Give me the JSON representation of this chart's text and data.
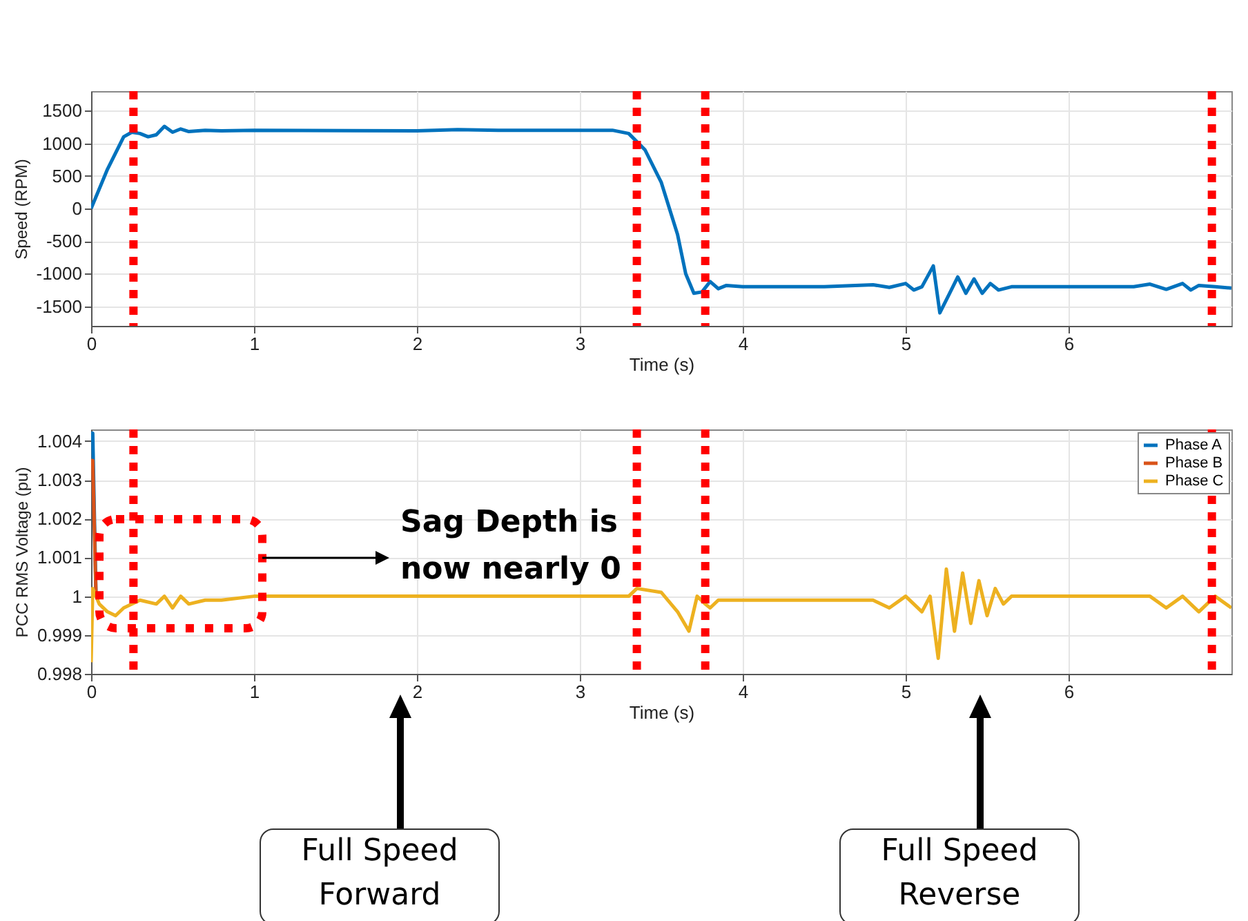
{
  "chart_data": [
    {
      "type": "line",
      "xlabel": "Time (s)",
      "ylabel": "Speed (RPM)",
      "xlim": [
        0,
        7
      ],
      "ylim": [
        -1800,
        1800
      ],
      "xticks": [
        0,
        1,
        2,
        3,
        4,
        5,
        6
      ],
      "yticks": [
        -1500,
        -1000,
        -500,
        0,
        500,
        1000,
        1500
      ],
      "grid": true,
      "legend": false,
      "line_style": "solid",
      "series": [
        {
          "color": "#0072bd",
          "x": [
            0,
            0.1,
            0.2,
            0.25,
            0.3,
            0.35,
            0.4,
            0.45,
            0.5,
            0.55,
            0.6,
            0.7,
            0.8,
            1.0,
            2.0,
            2.25,
            2.5,
            3.2,
            3.3,
            3.4,
            3.5,
            3.6,
            3.65,
            3.7,
            3.75,
            3.8,
            3.85,
            3.9,
            4.0,
            4.5,
            4.8,
            4.9,
            5.0,
            5.05,
            5.1,
            5.17,
            5.21,
            5.27,
            5.32,
            5.37,
            5.42,
            5.47,
            5.52,
            5.57,
            5.65,
            6.0,
            6.4,
            6.5,
            6.6,
            6.7,
            6.75,
            6.8,
            6.9,
            7.0
          ],
          "values": [
            0,
            600,
            1100,
            1170,
            1150,
            1100,
            1130,
            1260,
            1170,
            1220,
            1180,
            1200,
            1190,
            1200,
            1190,
            1210,
            1200,
            1200,
            1150,
            900,
            400,
            -400,
            -1000,
            -1300,
            -1280,
            -1120,
            -1230,
            -1180,
            -1200,
            -1200,
            -1170,
            -1210,
            -1150,
            -1250,
            -1200,
            -880,
            -1600,
            -1300,
            -1050,
            -1300,
            -1080,
            -1300,
            -1150,
            -1250,
            -1200,
            -1200,
            -1200,
            -1160,
            -1240,
            -1150,
            -1250,
            -1180,
            -1200,
            -1220
          ]
        }
      ],
      "ref_lines": [
        {
          "axis": "x",
          "value": 0.26,
          "color": "#ff0000",
          "line_style": "dotted"
        },
        {
          "axis": "x",
          "value": 3.35,
          "color": "#ff0000",
          "line_style": "dotted"
        },
        {
          "axis": "x",
          "value": 3.77,
          "color": "#ff0000",
          "line_style": "dotted"
        },
        {
          "axis": "x",
          "value": 6.88,
          "color": "#ff0000",
          "line_style": "dotted"
        }
      ]
    },
    {
      "type": "line",
      "xlabel": "Time (s)",
      "ylabel": "PCC RMS Voltage (pu)",
      "xlim": [
        0,
        7
      ],
      "ylim": [
        0.998,
        1.0043
      ],
      "xticks": [
        0,
        1,
        2,
        3,
        4,
        5,
        6
      ],
      "yticks": [
        0.998,
        0.999,
        1,
        1.001,
        1.002,
        1.003,
        1.004
      ],
      "grid": true,
      "legend": "top right",
      "line_style": "solid",
      "series": [
        {
          "name": "Phase A",
          "color": "#0072bd",
          "x": [
            0,
            0.01,
            0.03
          ],
          "values": [
            1.0042,
            1.0042,
            1.0
          ]
        },
        {
          "name": "Phase B",
          "color": "#d95319",
          "x": [
            0,
            0.01,
            0.03
          ],
          "values": [
            1.0035,
            1.0035,
            1.0
          ]
        },
        {
          "name": "Phase C",
          "color": "#edb120",
          "x": [
            0,
            0.01,
            0.05,
            0.1,
            0.15,
            0.2,
            0.3,
            0.4,
            0.45,
            0.5,
            0.55,
            0.6,
            0.7,
            0.8,
            1.0,
            3.3,
            3.35,
            3.5,
            3.6,
            3.67,
            3.72,
            3.77,
            3.8,
            3.85,
            4.0,
            4.8,
            4.9,
            5.0,
            5.1,
            5.15,
            5.2,
            5.25,
            5.3,
            5.35,
            5.4,
            5.45,
            5.5,
            5.55,
            5.6,
            5.65,
            6.5,
            6.6,
            6.7,
            6.8,
            6.9,
            7.0
          ],
          "values": [
            0.9983,
            1.0002,
            0.9998,
            0.9996,
            0.9995,
            0.9997,
            0.9999,
            0.9998,
            1.0,
            0.9997,
            1.0,
            0.9998,
            0.9999,
            0.9999,
            1.0,
            1.0,
            1.0002,
            1.0001,
            0.9996,
            0.9991,
            1.0,
            0.9998,
            0.9997,
            0.9999,
            0.9999,
            0.9999,
            0.9997,
            1.0,
            0.9996,
            1.0,
            0.9984,
            1.0007,
            0.9991,
            1.0006,
            0.9993,
            1.0004,
            0.9995,
            1.0002,
            0.9998,
            1.0,
            1.0,
            0.9997,
            1.0,
            0.9996,
            1.0,
            0.9997
          ]
        }
      ],
      "ref_lines": [
        {
          "axis": "x",
          "value": 0.26,
          "color": "#ff0000",
          "line_style": "dotted"
        },
        {
          "axis": "x",
          "value": 3.35,
          "color": "#ff0000",
          "line_style": "dotted"
        },
        {
          "axis": "x",
          "value": 3.77,
          "color": "#ff0000",
          "line_style": "dotted"
        },
        {
          "axis": "x",
          "value": 6.88,
          "color": "#ff0000",
          "line_style": "dotted"
        }
      ],
      "annotations": [
        "Sag Depth is now nearly 0",
        "Full Speed Forward",
        "Full Speed Reverse"
      ]
    }
  ]
}
